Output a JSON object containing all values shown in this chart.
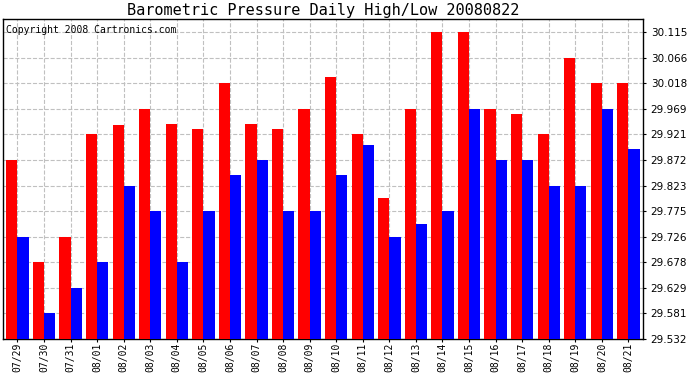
{
  "title": "Barometric Pressure Daily High/Low 20080822",
  "copyright": "Copyright 2008 Cartronics.com",
  "dates": [
    "07/29",
    "07/30",
    "07/31",
    "08/01",
    "08/02",
    "08/03",
    "08/04",
    "08/05",
    "08/06",
    "08/07",
    "08/08",
    "08/09",
    "08/10",
    "08/11",
    "08/12",
    "08/13",
    "08/14",
    "08/15",
    "08/16",
    "08/17",
    "08/18",
    "08/19",
    "08/20",
    "08/21"
  ],
  "highs": [
    29.872,
    29.678,
    29.726,
    29.921,
    29.939,
    29.969,
    29.94,
    29.93,
    30.018,
    29.94,
    29.93,
    29.969,
    30.03,
    29.921,
    29.8,
    29.969,
    30.115,
    30.115,
    29.969,
    29.96,
    29.921,
    30.066,
    30.018,
    30.018
  ],
  "lows": [
    29.726,
    29.581,
    29.629,
    29.678,
    29.823,
    29.775,
    29.678,
    29.775,
    29.843,
    29.872,
    29.775,
    29.775,
    29.843,
    29.9,
    29.726,
    29.75,
    29.775,
    29.969,
    29.872,
    29.872,
    29.823,
    29.823,
    29.969,
    29.893
  ],
  "high_color": "#ff0000",
  "low_color": "#0000ff",
  "ylim_min": 29.532,
  "ylim_max": 30.14,
  "yticks": [
    29.532,
    29.581,
    29.629,
    29.678,
    29.726,
    29.775,
    29.823,
    29.872,
    29.921,
    29.969,
    30.018,
    30.066,
    30.115
  ],
  "bg_color": "#ffffff",
  "grid_color": "#c0c0c0",
  "title_fontsize": 11,
  "copyright_fontsize": 7,
  "bar_width": 0.42
}
